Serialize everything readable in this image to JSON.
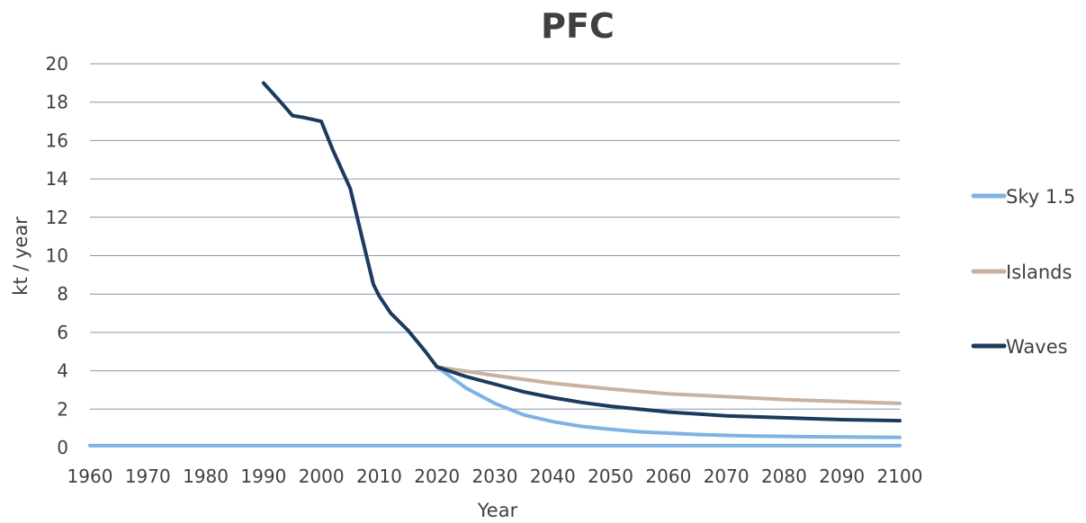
{
  "chart_data": {
    "type": "line",
    "title": "PFC",
    "xlabel": "Year",
    "ylabel": "kt / year",
    "xlim": [
      1960,
      2100
    ],
    "ylim": [
      0,
      20
    ],
    "xticks": [
      "1960",
      "1970",
      "1980",
      "1990",
      "2000",
      "2010",
      "2020",
      "2030",
      "2040",
      "2050",
      "2060",
      "2070",
      "2080",
      "2090",
      "2100"
    ],
    "yticks": [
      "0",
      "2",
      "4",
      "6",
      "8",
      "10",
      "12",
      "14",
      "16",
      "18",
      "20"
    ],
    "grid": true,
    "legend_position": "right",
    "series": [
      {
        "name": "Sky 1.5",
        "color": "#7fb2e5",
        "x": [
          1960,
          2100
        ],
        "y": [
          0.1,
          0.1
        ]
      },
      {
        "name": "Sky 1.5",
        "color": "#7fb2e5",
        "x": [
          2020,
          2025,
          2030,
          2035,
          2040,
          2045,
          2050,
          2055,
          2060,
          2065,
          2070,
          2075,
          2080,
          2085,
          2090,
          2095,
          2100
        ],
        "y": [
          4.2,
          3.1,
          2.3,
          1.7,
          1.35,
          1.1,
          0.95,
          0.82,
          0.75,
          0.68,
          0.63,
          0.6,
          0.58,
          0.56,
          0.55,
          0.54,
          0.53
        ]
      },
      {
        "name": "Islands",
        "color": "#c9b2a0",
        "x": [
          2020,
          2030,
          2040,
          2050,
          2060,
          2070,
          2080,
          2090,
          2100
        ],
        "y": [
          4.2,
          3.75,
          3.35,
          3.05,
          2.8,
          2.65,
          2.5,
          2.4,
          2.3
        ]
      },
      {
        "name": "Waves",
        "color": "#1c3a5e",
        "x": [
          1990,
          1993,
          1995,
          1997,
          2000,
          2002,
          2005,
          2007,
          2009,
          2010,
          2012,
          2015,
          2018,
          2020,
          2025,
          2030,
          2035,
          2040,
          2045,
          2050,
          2060,
          2070,
          2080,
          2090,
          2100
        ],
        "y": [
          19.0,
          18.0,
          17.3,
          17.2,
          17.0,
          15.5,
          13.5,
          11.0,
          8.5,
          7.9,
          7.0,
          6.1,
          5.0,
          4.2,
          3.7,
          3.3,
          2.9,
          2.6,
          2.35,
          2.15,
          1.85,
          1.65,
          1.55,
          1.45,
          1.4
        ]
      }
    ],
    "legend": [
      {
        "name": "Sky 1.5",
        "color": "#7fb2e5"
      },
      {
        "name": "Islands",
        "color": "#c9b2a0"
      },
      {
        "name": "Waves",
        "color": "#1c3a5e"
      }
    ]
  }
}
